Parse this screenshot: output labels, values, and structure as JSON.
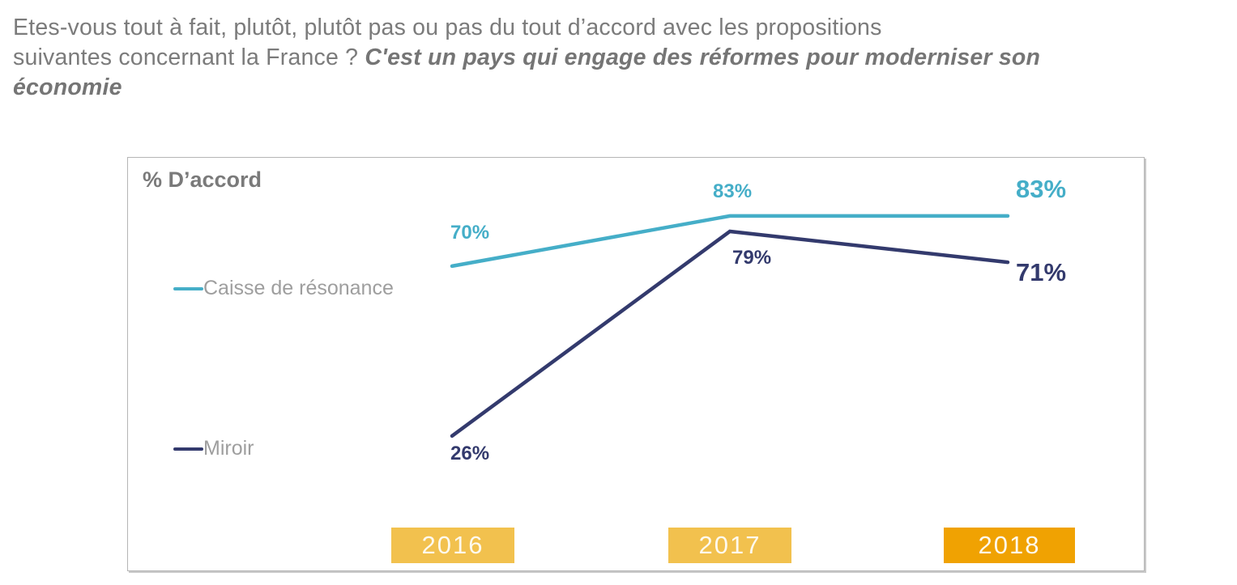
{
  "title": {
    "line1": "Etes-vous tout à fait, plutôt, plutôt pas ou pas du tout d’accord avec les propositions",
    "line2_normal": "suivantes concernant la France ? ",
    "line2_emphasis": "C'est un pays qui engage des réformes pour moderniser son",
    "line3_emphasis": "économie"
  },
  "chart": {
    "unit_label": "% D’accord",
    "frame_border_color": "#b5b5b5",
    "legend": [
      {
        "label": "Caisse de résonance"
      },
      {
        "label": "Miroir"
      }
    ]
  },
  "chart_data": {
    "type": "line",
    "title": "% D’accord",
    "categories": [
      "2016",
      "2017",
      "2018"
    ],
    "category_colors": [
      "#F2C14E",
      "#F2C14E",
      "#F0A202"
    ],
    "series": [
      {
        "name": "Caisse de résonance",
        "color": "#45AEC8",
        "values": [
          70,
          83,
          83
        ],
        "labels": [
          "70%",
          "83%",
          "83%"
        ]
      },
      {
        "name": "Miroir",
        "color": "#333A6D",
        "values": [
          26,
          79,
          71
        ],
        "labels": [
          "26%",
          "79%",
          "71%"
        ]
      }
    ],
    "ylim": [
      0,
      100
    ],
    "grid": false,
    "legend_position": "left",
    "data_labels": true,
    "notes": "last-point labels rendered larger; 2018 category highlighted with darker orange"
  }
}
